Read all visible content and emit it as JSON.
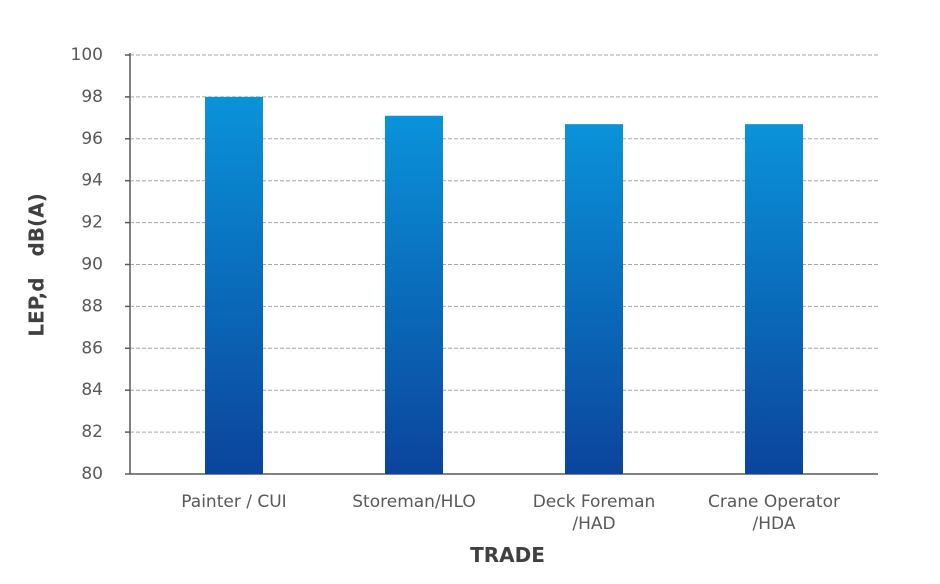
{
  "chart_data": {
    "type": "bar",
    "x_label": "TRADE",
    "y_label": "LEP,d   dB(A)",
    "categories": [
      "Painter / CUI",
      "Storeman/HLO",
      "Deck Foreman\n/HAD",
      "Crane Operator\n/HDA"
    ],
    "values": [
      98.0,
      97.1,
      96.7,
      96.7
    ],
    "gradient": {
      "top": "#0a93da",
      "bottom": "#0b449c"
    },
    "ylim": [
      80,
      100
    ],
    "yticks": [
      80,
      82,
      84,
      86,
      88,
      90,
      92,
      94,
      96,
      98,
      100
    ],
    "grid": true
  }
}
